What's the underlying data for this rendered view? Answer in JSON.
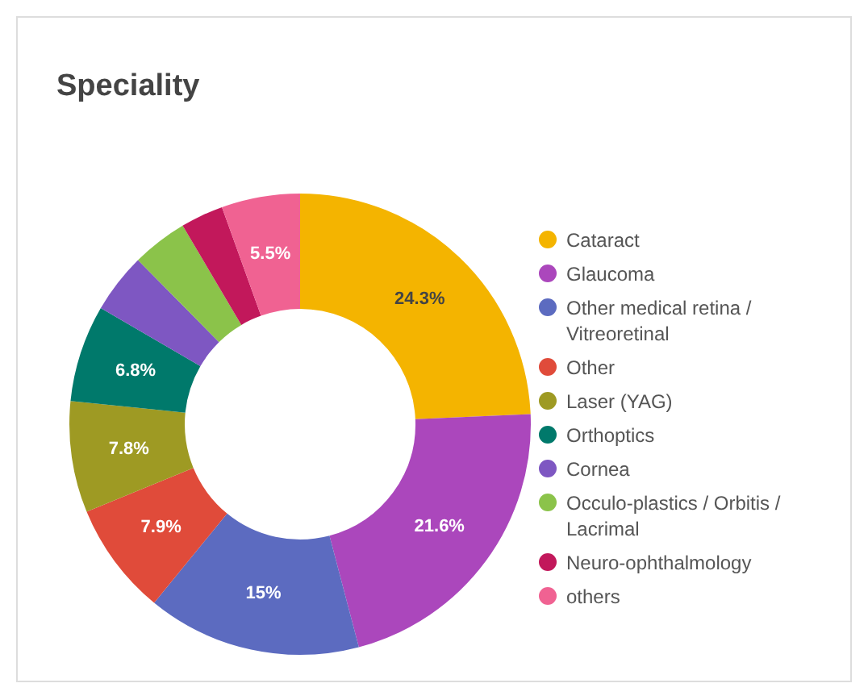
{
  "chart_data": {
    "type": "donut",
    "title": "Speciality",
    "categories": [
      "Cataract",
      "Glaucoma",
      "Other medical retina / Vitreoretinal",
      "Other",
      "Laser (YAG)",
      "Orthoptics",
      "Cornea",
      "Occulo-plastics / Orbitis / Lacrimal",
      "Neuro-ophthalmology",
      "others"
    ],
    "values": [
      24.3,
      21.6,
      15,
      7.9,
      7.8,
      6.8,
      4.2,
      3.9,
      3.0,
      5.5
    ],
    "value_labels": [
      "24.3%",
      "21.6%",
      "15%",
      "7.9%",
      "7.8%",
      "6.8%",
      null,
      null,
      null,
      "5.5%"
    ],
    "colors": [
      "#f4b400",
      "#ab47bc",
      "#5c6bc0",
      "#e04b3a",
      "#9e9a23",
      "#00796b",
      "#7e57c2",
      "#8bc34a",
      "#c2185b",
      "#f06292"
    ],
    "legend": "right"
  }
}
